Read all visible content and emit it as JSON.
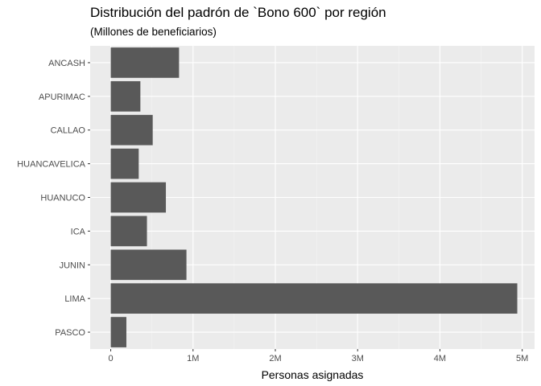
{
  "chart_data": {
    "type": "bar",
    "orientation": "horizontal",
    "title": "Distribución del padrón de `Bono 600` por región",
    "subtitle": "(Millones de beneficiarios)",
    "xlabel": "Personas asignadas",
    "ylabel": "",
    "categories": [
      "ANCASH",
      "APURIMAC",
      "CALLAO",
      "HUANCAVELICA",
      "HUANUCO",
      "ICA",
      "JUNIN",
      "LIMA",
      "PASCO"
    ],
    "values": [
      830000,
      360000,
      510000,
      340000,
      670000,
      440000,
      920000,
      4940000,
      190000
    ],
    "xlim": [
      -250000,
      5150000
    ],
    "x_ticks": [
      {
        "value": 0,
        "label": "0"
      },
      {
        "value": 1000000,
        "label": "1M"
      },
      {
        "value": 2000000,
        "label": "2M"
      },
      {
        "value": 3000000,
        "label": "3M"
      },
      {
        "value": 4000000,
        "label": "4M"
      },
      {
        "value": 5000000,
        "label": "5M"
      }
    ],
    "grid": true,
    "colors": {
      "bar": "#595959",
      "panel": "#ebebeb",
      "grid_major": "#ffffff",
      "grid_minor": "#f5f5f5"
    }
  }
}
